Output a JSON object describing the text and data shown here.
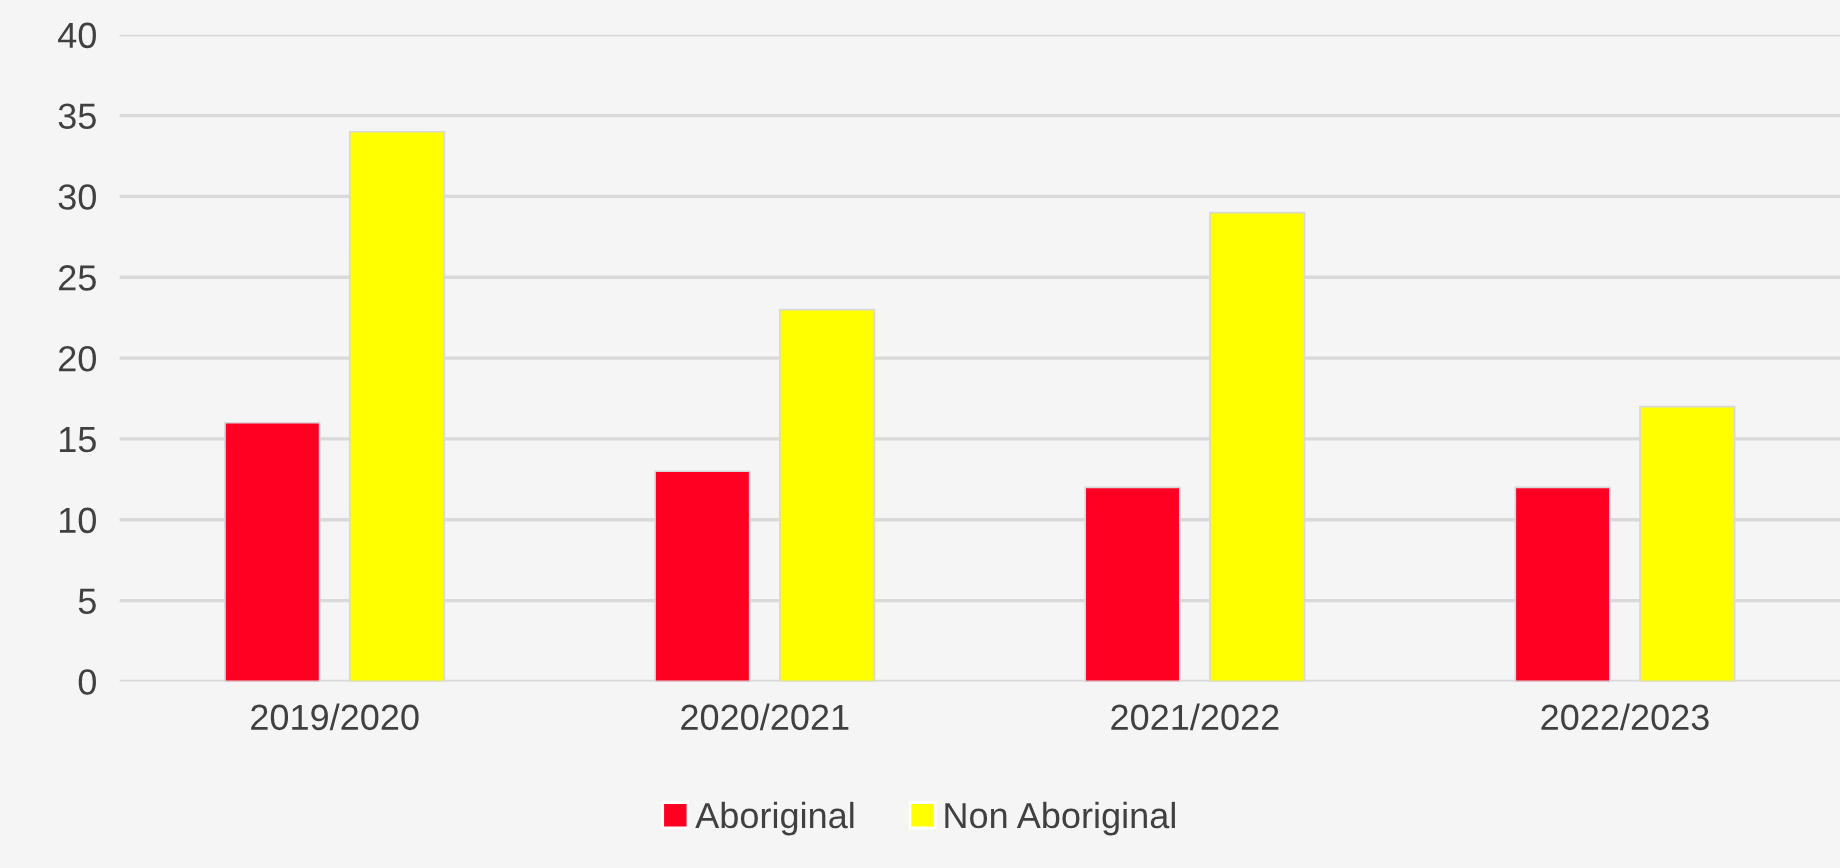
{
  "chart_data": {
    "type": "bar",
    "categories": [
      "2019/2020",
      "2020/2021",
      "2021/2022",
      "2022/2023"
    ],
    "series": [
      {
        "name": "Aboriginal",
        "color": "#ff0022",
        "values": [
          16,
          13,
          12,
          12
        ]
      },
      {
        "name": "Non Aboriginal",
        "color": "#ffff00",
        "values": [
          34,
          23,
          29,
          17
        ]
      }
    ],
    "ylim": [
      0,
      40
    ],
    "yticks": [
      0,
      5,
      10,
      15,
      20,
      25,
      30,
      35,
      40
    ],
    "grid": "y",
    "legend": "bottom"
  }
}
